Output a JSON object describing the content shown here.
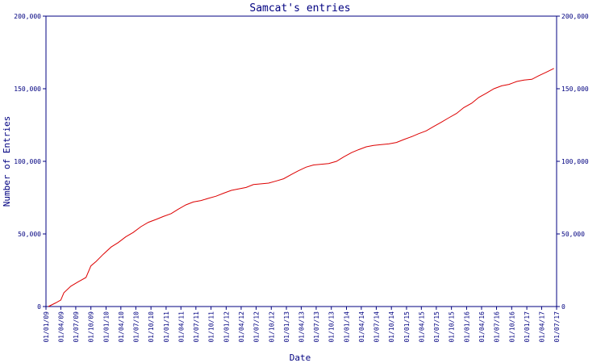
{
  "chart_data": {
    "type": "line",
    "title": "Samcat's entries",
    "xlabel": "Date",
    "ylabel": "Number of Entries",
    "ylim": [
      0,
      200000
    ],
    "yticks": [
      0,
      50000,
      100000,
      150000,
      200000
    ],
    "ytick_labels": [
      "0",
      "50,000",
      "100,000",
      "150,000",
      "200,000"
    ],
    "xlim": [
      "2009-01-01",
      "2017-07-01"
    ],
    "xtick_labels": [
      "01/01/09",
      "01/04/09",
      "01/07/09",
      "01/10/09",
      "01/01/10",
      "01/04/10",
      "01/07/10",
      "01/10/10",
      "01/01/11",
      "01/04/11",
      "01/07/11",
      "01/10/11",
      "01/01/12",
      "01/04/12",
      "01/07/12",
      "01/10/12",
      "01/01/13",
      "01/04/13",
      "01/07/13",
      "01/10/13",
      "01/01/14",
      "01/04/14",
      "01/07/14",
      "01/10/14",
      "01/01/15",
      "01/04/15",
      "01/07/15",
      "01/10/15",
      "01/01/16",
      "01/04/16",
      "01/07/16",
      "01/10/16",
      "01/01/17",
      "01/04/17",
      "01/07/17"
    ],
    "grid": false,
    "line_color": "#dd0000",
    "axis_color": "#000080",
    "series": [
      {
        "x": [
          "2009-01-15",
          "2009-03-01",
          "2009-04-01",
          "2009-04-20",
          "2009-06-01",
          "2009-07-15",
          "2009-09-01",
          "2009-10-01",
          "2009-11-01",
          "2009-12-15",
          "2010-02-01",
          "2010-03-15",
          "2010-05-01",
          "2010-06-15",
          "2010-08-01",
          "2010-09-15",
          "2010-11-01",
          "2010-12-15",
          "2011-02-01",
          "2011-03-15",
          "2011-05-01",
          "2011-06-15",
          "2011-08-01",
          "2011-09-15",
          "2011-11-01",
          "2011-12-15",
          "2012-02-01",
          "2012-03-15",
          "2012-05-01",
          "2012-06-15",
          "2012-08-01",
          "2012-09-15",
          "2012-11-01",
          "2012-12-15",
          "2013-02-01",
          "2013-03-15",
          "2013-05-01",
          "2013-06-15",
          "2013-08-01",
          "2013-09-15",
          "2013-11-01",
          "2013-12-15",
          "2014-02-01",
          "2014-03-15",
          "2014-05-01",
          "2014-06-15",
          "2014-08-01",
          "2014-09-15",
          "2014-11-01",
          "2014-12-15",
          "2015-02-01",
          "2015-03-15",
          "2015-05-01",
          "2015-06-15",
          "2015-08-01",
          "2015-09-15",
          "2015-11-01",
          "2015-12-15",
          "2016-02-01",
          "2016-03-15",
          "2016-05-01",
          "2016-06-15",
          "2016-08-01",
          "2016-09-15",
          "2016-11-01",
          "2016-12-15",
          "2017-02-01",
          "2017-03-15",
          "2017-05-01",
          "2017-06-15"
        ],
        "values": [
          0,
          2500,
          4500,
          9500,
          14000,
          17000,
          20000,
          28000,
          31000,
          36000,
          41000,
          44000,
          48000,
          51000,
          55000,
          58000,
          60000,
          62000,
          64000,
          67000,
          70000,
          72000,
          73000,
          74500,
          76000,
          78000,
          80000,
          81000,
          82000,
          84000,
          84500,
          85000,
          86500,
          88000,
          91000,
          93500,
          96000,
          97500,
          98000,
          98500,
          100000,
          103000,
          106000,
          108000,
          110000,
          111000,
          111500,
          112000,
          113000,
          115000,
          117000,
          119000,
          121000,
          124000,
          127000,
          130000,
          133000,
          137000,
          140000,
          144000,
          147000,
          150000,
          152000,
          153000,
          155000,
          156000,
          156500,
          159000,
          161500,
          164000
        ]
      }
    ]
  }
}
